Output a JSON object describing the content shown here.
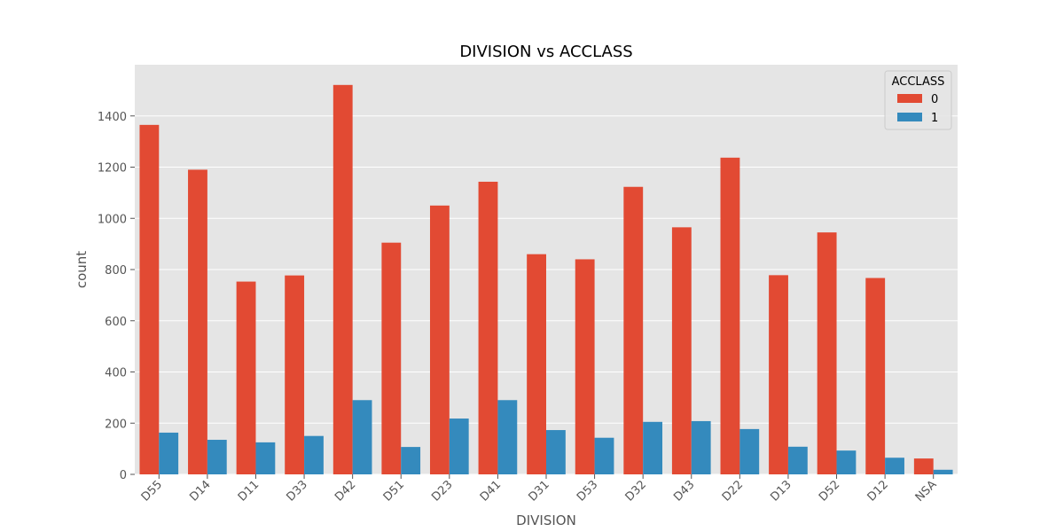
{
  "chart_data": {
    "type": "bar",
    "title": "DIVISION vs ACCLASS",
    "xlabel": "DIVISION",
    "ylabel": "count",
    "ylim": [
      0,
      1600
    ],
    "yticks": [
      0,
      200,
      400,
      600,
      800,
      1000,
      1200,
      1400
    ],
    "grid": true,
    "legend": {
      "title": "ACCLASS",
      "placement": "top-right"
    },
    "categories": [
      "D55",
      "D14",
      "D11",
      "D33",
      "D42",
      "D51",
      "D23",
      "D41",
      "D31",
      "D53",
      "D32",
      "D43",
      "D22",
      "D13",
      "D52",
      "D12",
      "NSA"
    ],
    "series": [
      {
        "name": "0",
        "color": "#e24a33",
        "values": [
          1365,
          1190,
          753,
          777,
          1521,
          905,
          1050,
          1143,
          860,
          840,
          1123,
          965,
          1237,
          778,
          945,
          767,
          62
        ]
      },
      {
        "name": "1",
        "color": "#348abd",
        "values": [
          163,
          135,
          125,
          150,
          290,
          107,
          218,
          290,
          173,
          143,
          205,
          208,
          177,
          108,
          93,
          65,
          18
        ]
      }
    ]
  }
}
